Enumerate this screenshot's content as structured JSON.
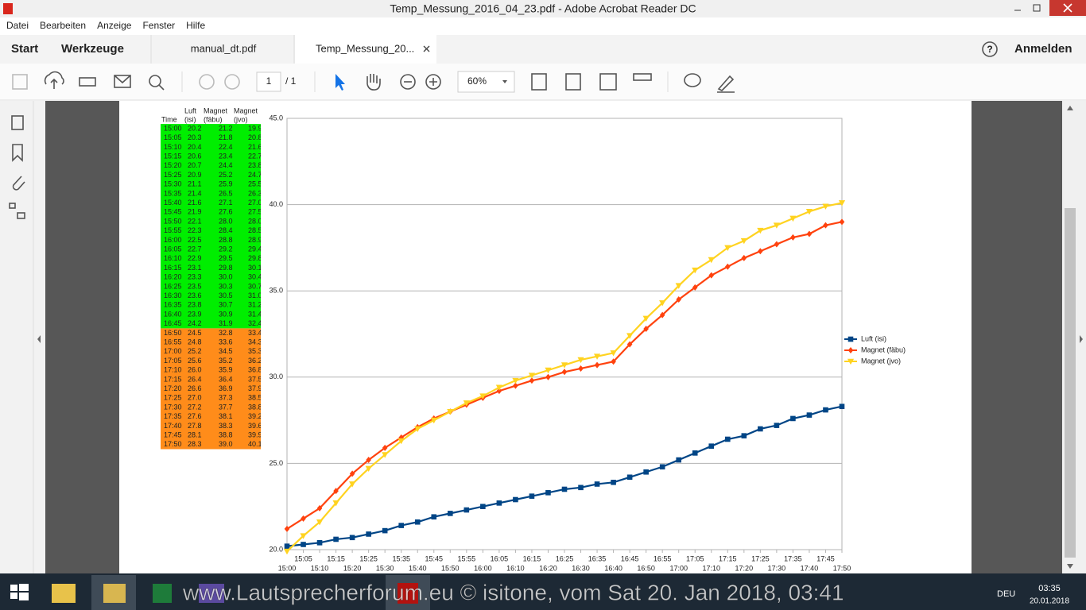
{
  "window": {
    "title": "Temp_Messung_2016_04_23.pdf - Adobe Acrobat Reader DC",
    "menu": [
      "Datei",
      "Bearbeiten",
      "Anzeige",
      "Fenster",
      "Hilfe"
    ],
    "home_tab": "Start",
    "tools_tab": "Werkzeuge",
    "doc_tabs": [
      "manual_dt.pdf",
      "Temp_Messung_20..."
    ],
    "help": "?",
    "sign_in": "Anmelden"
  },
  "toolbar": {
    "page": "1",
    "page_count": "/ 1",
    "zoom": "60%"
  },
  "table": {
    "header": [
      [
        "Time"
      ],
      [
        "Luft",
        "(isi)"
      ],
      [
        "Magnet",
        "(fäbu)"
      ],
      [
        "Magnet",
        "(jvo)"
      ]
    ],
    "groups": [
      {
        "fill": "#00ee00",
        "rows": [
          [
            "15:00",
            "20.2",
            "21.2",
            "19.9"
          ],
          [
            "15:05",
            "20.3",
            "21.8",
            "20.8"
          ],
          [
            "15:10",
            "20.4",
            "22.4",
            "21.6"
          ],
          [
            "15:15",
            "20.6",
            "23.4",
            "22.7"
          ],
          [
            "15:20",
            "20.7",
            "24.4",
            "23.8"
          ],
          [
            "15:25",
            "20.9",
            "25.2",
            "24.7"
          ],
          [
            "15:30",
            "21.1",
            "25.9",
            "25.5"
          ],
          [
            "15:35",
            "21.4",
            "26.5",
            "26.3"
          ],
          [
            "15:40",
            "21.6",
            "27.1",
            "27.0"
          ],
          [
            "15:45",
            "21.9",
            "27.6",
            "27.5"
          ],
          [
            "15:50",
            "22.1",
            "28.0",
            "28.0"
          ],
          [
            "15:55",
            "22.3",
            "28.4",
            "28.5"
          ],
          [
            "16:00",
            "22.5",
            "28.8",
            "28.9"
          ],
          [
            "16:05",
            "22.7",
            "29.2",
            "29.4"
          ],
          [
            "16:10",
            "22.9",
            "29.5",
            "29.8"
          ],
          [
            "16:15",
            "23.1",
            "29.8",
            "30.1"
          ],
          [
            "16:20",
            "23.3",
            "30.0",
            "30.4"
          ],
          [
            "16:25",
            "23.5",
            "30.3",
            "30.7"
          ],
          [
            "16:30",
            "23.6",
            "30.5",
            "31.0"
          ],
          [
            "16:35",
            "23.8",
            "30.7",
            "31.2"
          ],
          [
            "16:40",
            "23.9",
            "30.9",
            "31.4"
          ],
          [
            "16:45",
            "24.2",
            "31.9",
            "32.4"
          ]
        ]
      },
      {
        "fill": "#ff8c1a",
        "rows": [
          [
            "16:50",
            "24.5",
            "32.8",
            "33.4"
          ],
          [
            "16:55",
            "24.8",
            "33.6",
            "34.3"
          ],
          [
            "17:00",
            "25.2",
            "34.5",
            "35.3"
          ],
          [
            "17:05",
            "25.6",
            "35.2",
            "36.2"
          ],
          [
            "17:10",
            "26.0",
            "35.9",
            "36.8"
          ],
          [
            "17:15",
            "26.4",
            "36.4",
            "37.5"
          ],
          [
            "17:20",
            "26.6",
            "36.9",
            "37.9"
          ],
          [
            "17:25",
            "27.0",
            "37.3",
            "38.5"
          ],
          [
            "17:30",
            "27.2",
            "37.7",
            "38.8"
          ],
          [
            "17:35",
            "27.6",
            "38.1",
            "39.2"
          ],
          [
            "17:40",
            "27.8",
            "38.3",
            "39.6"
          ],
          [
            "17:45",
            "28.1",
            "38.8",
            "39.9"
          ],
          [
            "17:50",
            "28.3",
            "39.0",
            "40.1"
          ]
        ]
      }
    ]
  },
  "chart_data": {
    "type": "line",
    "categories": [
      "15:00",
      "15:05",
      "15:10",
      "15:15",
      "15:20",
      "15:25",
      "15:30",
      "15:35",
      "15:40",
      "15:45",
      "15:50",
      "15:55",
      "16:00",
      "16:05",
      "16:10",
      "16:15",
      "16:20",
      "16:25",
      "16:30",
      "16:35",
      "16:40",
      "16:45",
      "16:50",
      "16:55",
      "17:00",
      "17:05",
      "17:10",
      "17:15",
      "17:20",
      "17:25",
      "17:30",
      "17:35",
      "17:40",
      "17:45",
      "17:50"
    ],
    "series": [
      {
        "name": "Luft (isi)",
        "color": "#004586",
        "marker": "square",
        "values": [
          20.2,
          20.3,
          20.4,
          20.6,
          20.7,
          20.9,
          21.1,
          21.4,
          21.6,
          21.9,
          22.1,
          22.3,
          22.5,
          22.7,
          22.9,
          23.1,
          23.3,
          23.5,
          23.6,
          23.8,
          23.9,
          24.2,
          24.5,
          24.8,
          25.2,
          25.6,
          26.0,
          26.4,
          26.6,
          27.0,
          27.2,
          27.6,
          27.8,
          28.1,
          28.3
        ]
      },
      {
        "name": "Magnet (fäbu)",
        "color": "#ff420e",
        "marker": "diamond",
        "values": [
          21.2,
          21.8,
          22.4,
          23.4,
          24.4,
          25.2,
          25.9,
          26.5,
          27.1,
          27.6,
          28.0,
          28.4,
          28.8,
          29.2,
          29.5,
          29.8,
          30.0,
          30.3,
          30.5,
          30.7,
          30.9,
          31.9,
          32.8,
          33.6,
          34.5,
          35.2,
          35.9,
          36.4,
          36.9,
          37.3,
          37.7,
          38.1,
          38.3,
          38.8,
          39.0
        ]
      },
      {
        "name": "Magnet (jvo)",
        "color": "#ffd320",
        "marker": "triangle-down",
        "values": [
          19.9,
          20.8,
          21.6,
          22.7,
          23.8,
          24.7,
          25.5,
          26.3,
          27.0,
          27.5,
          28.0,
          28.5,
          28.9,
          29.4,
          29.8,
          30.1,
          30.4,
          30.7,
          31.0,
          31.2,
          31.4,
          32.4,
          33.4,
          34.3,
          35.3,
          36.2,
          36.8,
          37.5,
          37.9,
          38.5,
          38.8,
          39.2,
          39.6,
          39.9,
          40.1
        ]
      }
    ],
    "ylim": [
      20,
      45
    ],
    "yticks": [
      {
        "value": 20,
        "label": "20.0"
      },
      {
        "value": 25,
        "label": "25.0"
      },
      {
        "value": 30,
        "label": "30.0"
      },
      {
        "value": 35,
        "label": "35.0"
      },
      {
        "value": 40,
        "label": "40.0"
      },
      {
        "value": 45,
        "label": "45.0"
      }
    ],
    "grid": true,
    "legend": "right"
  },
  "taskbar": {
    "watermark": "www.Lautsprecherforum.eu © isitone, vom Sat 20. Jan 2018, 03:41",
    "language": "DEU",
    "time": "03:35",
    "date": "20.01.2018"
  }
}
